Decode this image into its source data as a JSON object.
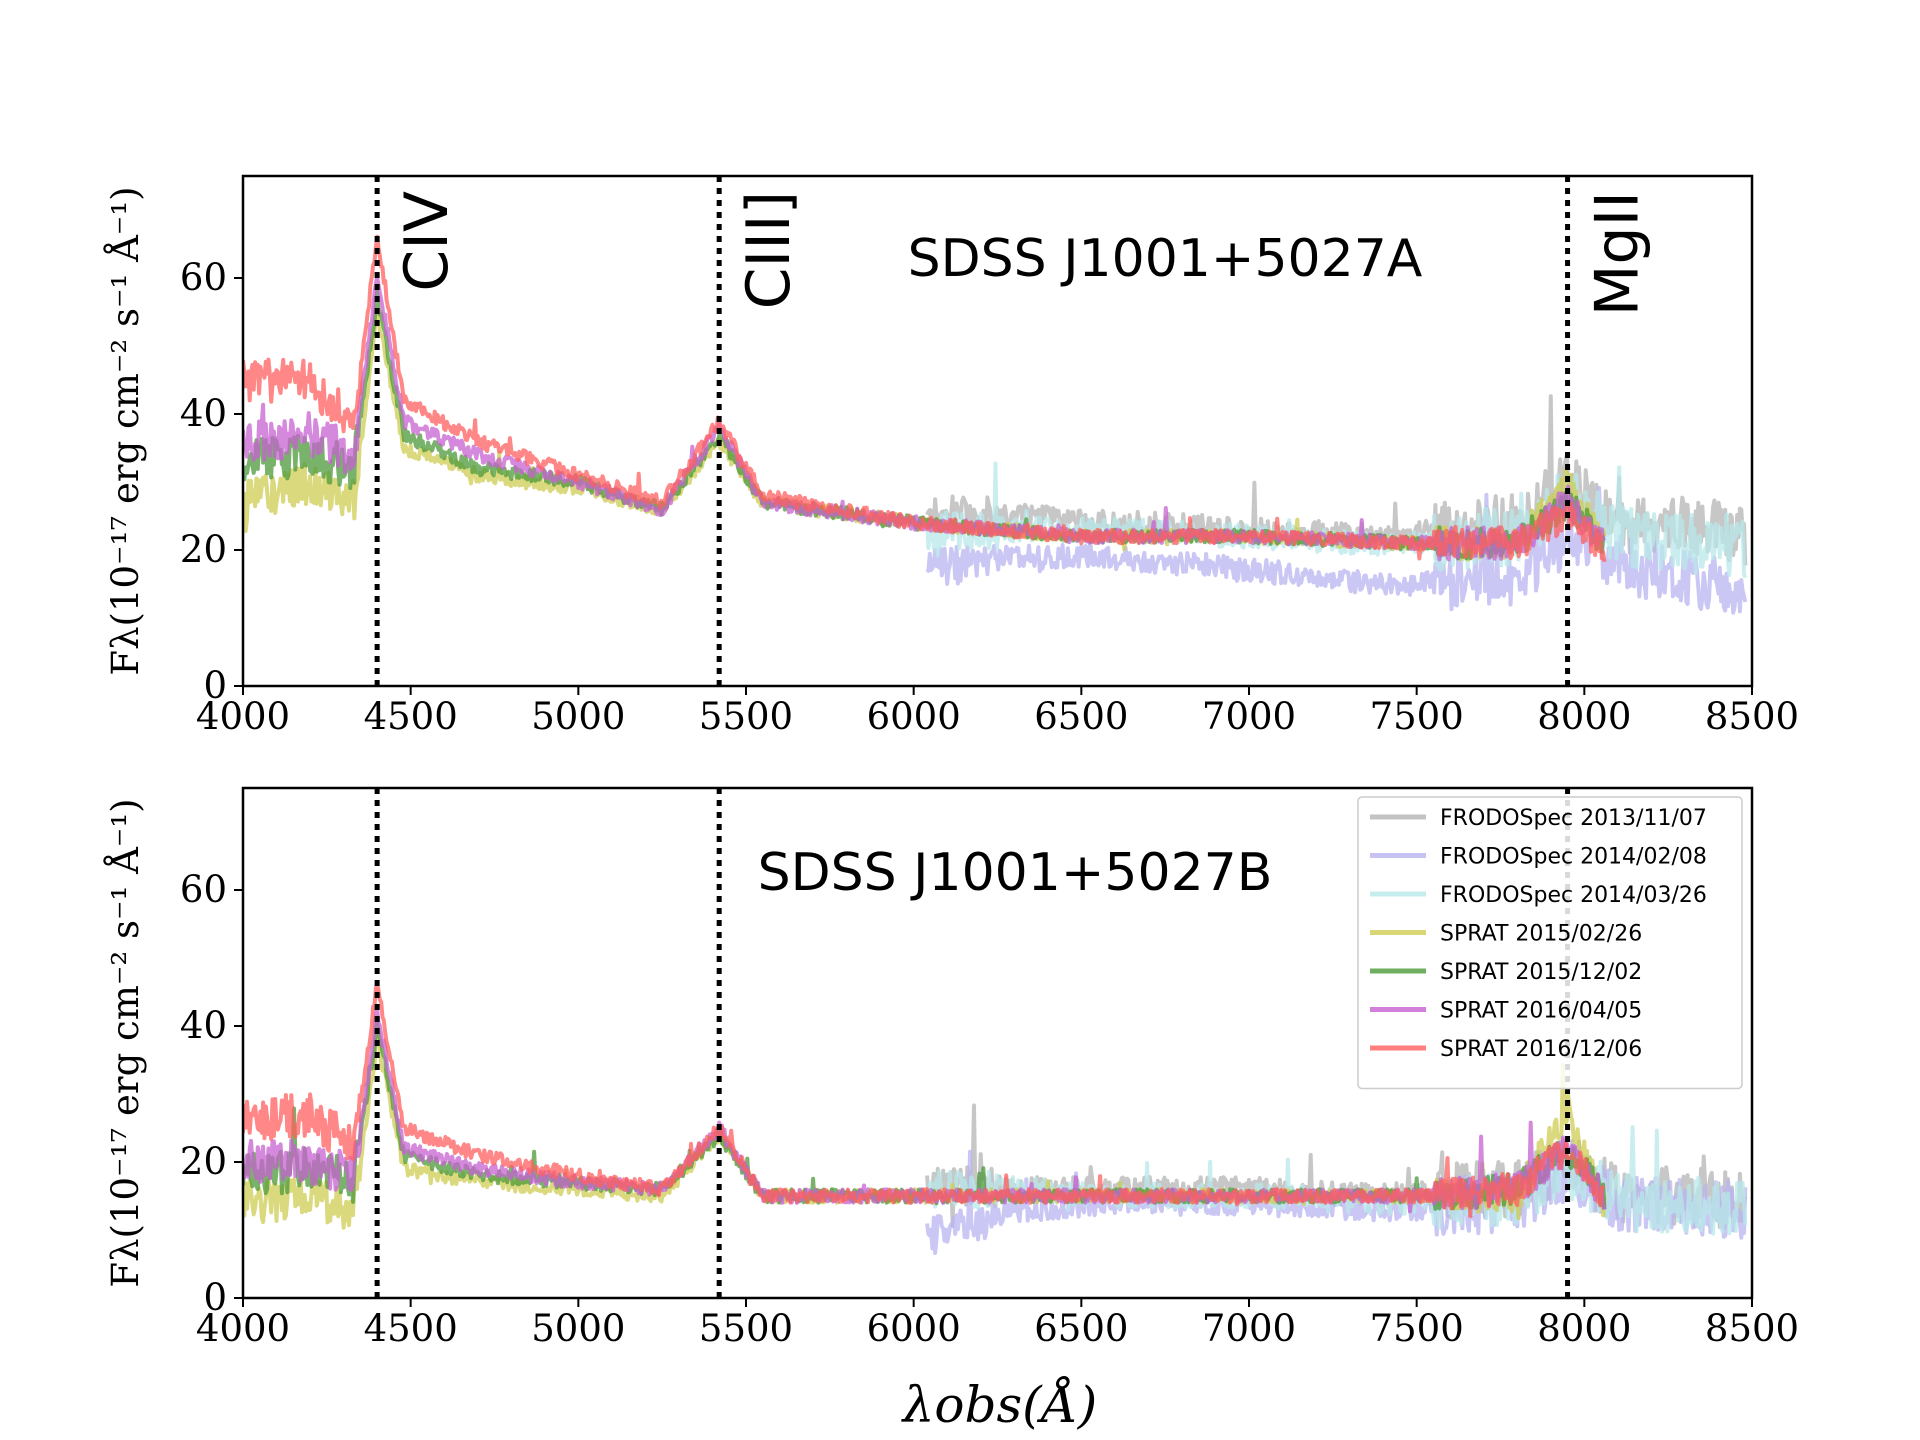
{
  "chart_data": {
    "type": "line",
    "xlabel": "λobs(Å)",
    "ylabel": "Fλ(10⁻¹⁷ erg cm⁻² s⁻¹ Å⁻¹)",
    "xlim": [
      4000,
      8500
    ],
    "ylim": [
      0,
      75
    ],
    "x_ticks": [
      "4000",
      "4500",
      "5000",
      "5500",
      "6000",
      "6500",
      "7000",
      "7500",
      "8000",
      "8500"
    ],
    "y_ticks": [
      "0",
      "20",
      "40",
      "60"
    ],
    "emission_lines": [
      {
        "name": "CIV",
        "wavelength": 4400
      },
      {
        "name": "CIII]",
        "wavelength": 5420
      },
      {
        "name": "MgII",
        "wavelength": 7950
      }
    ],
    "legend": [
      {
        "label": "FRODOSpec 2013/11/07",
        "color": "#b4b4b4"
      },
      {
        "label": "FRODOSpec 2014/02/08",
        "color": "#b8b4f0"
      },
      {
        "label": "FRODOSpec 2014/03/26",
        "color": "#b8e8ea"
      },
      {
        "label": "SPRAT 2015/02/26",
        "color": "#cfcc52"
      },
      {
        "label": "SPRAT 2015/12/02",
        "color": "#4c9a3a"
      },
      {
        "label": "SPRAT 2016/04/05",
        "color": "#c562d0"
      },
      {
        "label": "SPRAT 2016/12/06",
        "color": "#ff5f5f"
      }
    ],
    "panels": [
      {
        "title": "SDSS J1001+5027A",
        "show_line_labels": true,
        "show_legend": false,
        "series": [
          {
            "name": "FRODOSpec 2013/11/07",
            "color": "#b4b4b4",
            "range": [
              6040,
              8480
            ],
            "x": [
              6040,
              6300,
              6600,
              7000,
              7400,
              7800,
              7950,
              8100,
              8300,
              8480
            ],
            "y": [
              25,
              25,
              24,
              23,
              22,
              24,
              30,
              23,
              24,
              22
            ]
          },
          {
            "name": "FRODOSpec 2014/02/08",
            "color": "#b8b4f0",
            "range": [
              6040,
              8480
            ],
            "x": [
              6040,
              6300,
              6600,
              7000,
              7400,
              7800,
              7950,
              8100,
              8300,
              8480
            ],
            "y": [
              17,
              19,
              19,
              17,
              15,
              16,
              22,
              18,
              16,
              14
            ]
          },
          {
            "name": "FRODOSpec 2014/03/26",
            "color": "#b8e8ea",
            "range": [
              6040,
              8480
            ],
            "x": [
              6040,
              6300,
              6600,
              7000,
              7400,
              7800,
              7950,
              8100,
              8300,
              8480
            ],
            "y": [
              23,
              23,
              23,
              22,
              21,
              22,
              28,
              22,
              21,
              20
            ]
          },
          {
            "name": "SPRAT 2015/02/26",
            "color": "#cfcc52",
            "range": [
              4000,
              8060
            ],
            "x": [
              4000,
              4200,
              4330,
              4400,
              4480,
              4700,
              5000,
              5250,
              5420,
              5550,
              6000,
              6500,
              7000,
              7500,
              7800,
              7950,
              8060
            ],
            "y": [
              27,
              30,
              27,
              55,
              35,
              31,
              29,
              26,
              36,
              27,
              24,
              22,
              22,
              21,
              21,
              30,
              21
            ]
          },
          {
            "name": "SPRAT 2015/12/02",
            "color": "#4c9a3a",
            "range": [
              4000,
              8060
            ],
            "x": [
              4000,
              4200,
              4330,
              4400,
              4480,
              4700,
              5000,
              5250,
              5420,
              5550,
              6000,
              6500,
              7000,
              7500,
              7800,
              7950,
              8060
            ],
            "y": [
              33,
              34,
              32,
              57,
              37,
              32,
              30,
              26,
              37,
              27,
              24,
              22,
              22,
              21,
              21,
              27,
              21
            ]
          },
          {
            "name": "SPRAT 2016/04/05",
            "color": "#c562d0",
            "range": [
              4000,
              8060
            ],
            "x": [
              4000,
              4200,
              4330,
              4400,
              4480,
              4700,
              5000,
              5250,
              5420,
              5550,
              6000,
              6500,
              7000,
              7500,
              7800,
              7950,
              8060
            ],
            "y": [
              36,
              37,
              34,
              60,
              39,
              34,
              30,
              26,
              38,
              27,
              24,
              22,
              22,
              21,
              21,
              27,
              21
            ]
          },
          {
            "name": "SPRAT 2016/12/06",
            "color": "#ff5f5f",
            "range": [
              4000,
              8060
            ],
            "x": [
              4000,
              4200,
              4330,
              4400,
              4480,
              4700,
              5000,
              5250,
              5420,
              5550,
              6000,
              6500,
              7000,
              7500,
              7800,
              7950,
              8060
            ],
            "y": [
              45,
              45,
              38,
              66,
              42,
              36,
              31,
              27,
              39,
              28,
              24,
              22,
              22,
              21,
              21,
              25,
              20
            ]
          }
        ]
      },
      {
        "title": "SDSS J1001+5027B",
        "show_line_labels": false,
        "show_legend": true,
        "series": [
          {
            "name": "FRODOSpec 2013/11/07",
            "color": "#b4b4b4",
            "range": [
              6040,
              8480
            ],
            "x": [
              6040,
              6300,
              6600,
              7000,
              7400,
              7800,
              7950,
              8100,
              8300,
              8480
            ],
            "y": [
              17,
              16,
              16,
              16,
              15,
              16,
              20,
              15,
              15,
              14
            ]
          },
          {
            "name": "FRODOSpec 2014/02/08",
            "color": "#b8b4f0",
            "range": [
              6040,
              8480
            ],
            "x": [
              6040,
              6300,
              6600,
              7000,
              7400,
              7800,
              7950,
              8100,
              8300,
              8480
            ],
            "y": [
              9,
              13,
              14,
              14,
              13,
              14,
              18,
              14,
              13,
              13
            ]
          },
          {
            "name": "FRODOSpec 2014/03/26",
            "color": "#b8e8ea",
            "range": [
              6040,
              8480
            ],
            "x": [
              6040,
              6300,
              6600,
              7000,
              7400,
              7800,
              7950,
              8100,
              8300,
              8480
            ],
            "y": [
              16,
              16,
              15,
              15,
              14,
              15,
              19,
              14,
              14,
              13
            ]
          },
          {
            "name": "SPRAT 2015/02/26",
            "color": "#cfcc52",
            "range": [
              4000,
              8060
            ],
            "x": [
              4000,
              4200,
              4330,
              4400,
              4480,
              4700,
              5000,
              5250,
              5420,
              5550,
              6000,
              6500,
              7000,
              7500,
              7800,
              7950,
              8060
            ],
            "y": [
              14,
              15,
              13,
              38,
              19,
              17,
              16,
              15,
              24,
              15,
              15,
              15,
              15,
              15,
              15,
              28,
              14
            ]
          },
          {
            "name": "SPRAT 2015/12/02",
            "color": "#4c9a3a",
            "range": [
              4000,
              8060
            ],
            "x": [
              4000,
              4200,
              4330,
              4400,
              4480,
              4700,
              5000,
              5250,
              5420,
              5550,
              6000,
              6500,
              7000,
              7500,
              7800,
              7950,
              8060
            ],
            "y": [
              18,
              19,
              17,
              40,
              21,
              18,
              17,
              16,
              24,
              15,
              15,
              15,
              15,
              15,
              16,
              22,
              15
            ]
          },
          {
            "name": "SPRAT 2016/04/05",
            "color": "#c562d0",
            "range": [
              4000,
              8060
            ],
            "x": [
              4000,
              4200,
              4330,
              4400,
              4480,
              4700,
              5000,
              5250,
              5420,
              5550,
              6000,
              6500,
              7000,
              7500,
              7800,
              7950,
              8060
            ],
            "y": [
              20,
              20,
              18,
              42,
              22,
              19,
              17,
              16,
              25,
              15,
              15,
              15,
              15,
              15,
              16,
              22,
              15
            ]
          },
          {
            "name": "SPRAT 2016/12/06",
            "color": "#ff5f5f",
            "range": [
              4000,
              8060
            ],
            "x": [
              4000,
              4200,
              4330,
              4400,
              4480,
              4700,
              5000,
              5250,
              5420,
              5550,
              6000,
              6500,
              7000,
              7500,
              7800,
              7950,
              8060
            ],
            "y": [
              26,
              27,
              22,
              46,
              25,
              21,
              18,
              16,
              25,
              15,
              15,
              15,
              15,
              15,
              16,
              22,
              15
            ]
          }
        ]
      }
    ]
  }
}
